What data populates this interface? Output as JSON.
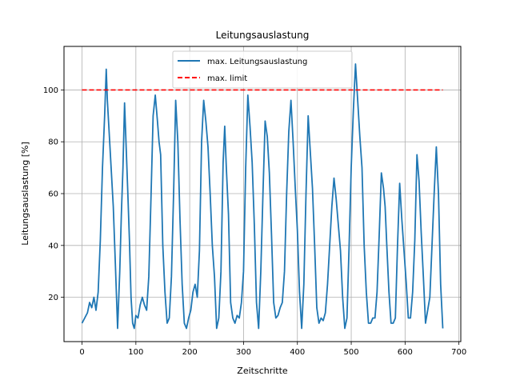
{
  "chart_data": {
    "type": "line",
    "title": "Leitungsauslastung",
    "xlabel": "Zeitschritte",
    "ylabel": "Leitungsauslastung [%]",
    "xlim": [
      -33.5,
      703.5
    ],
    "ylim": [
      2.9,
      116.8
    ],
    "xticks": [
      0,
      100,
      200,
      300,
      400,
      500,
      600,
      700
    ],
    "yticks": [
      20,
      40,
      60,
      80,
      100
    ],
    "grid": true,
    "legend_position": "top-center",
    "series": [
      {
        "name": "max. Leitungsauslastung",
        "color": "#1f77b4",
        "style": "solid",
        "x": [
          0,
          5,
          10,
          14,
          18,
          22,
          26,
          30,
          34,
          38,
          42,
          45,
          47,
          50,
          54,
          58,
          62,
          66,
          70,
          73,
          76,
          79,
          82,
          85,
          88,
          91,
          94,
          97,
          100,
          104,
          108,
          112,
          116,
          120,
          124,
          128,
          132,
          136,
          140,
          143,
          146,
          150,
          154,
          158,
          162,
          166,
          170,
          174,
          178,
          182,
          186,
          190,
          194,
          198,
          202,
          206,
          210,
          214,
          218,
          222,
          226,
          230,
          234,
          238,
          242,
          246,
          250,
          254,
          258,
          262,
          265,
          268,
          272,
          276,
          280,
          284,
          288,
          292,
          296,
          300,
          304,
          308,
          312,
          316,
          320,
          324,
          328,
          332,
          336,
          340,
          344,
          348,
          352,
          356,
          360,
          364,
          368,
          372,
          376,
          380,
          384,
          388,
          392,
          396,
          400,
          404,
          408,
          412,
          416,
          420,
          424,
          428,
          432,
          436,
          440,
          444,
          448,
          452,
          456,
          460,
          464,
          468,
          472,
          476,
          480,
          484,
          488,
          492,
          496,
          500,
          504,
          508,
          512,
          516,
          520,
          524,
          528,
          532,
          536,
          540,
          544,
          548,
          552,
          556,
          560,
          563,
          566,
          570,
          574,
          578,
          582,
          586,
          590,
          594,
          598,
          602,
          606,
          610,
          614,
          618,
          622,
          626,
          630,
          634,
          638,
          642,
          646,
          650,
          654,
          658,
          662,
          666,
          670
        ],
        "y": [
          10,
          12,
          14,
          18,
          16,
          20,
          15,
          22,
          42,
          70,
          90,
          108,
          96,
          85,
          70,
          55,
          32,
          8,
          30,
          52,
          70,
          95,
          78,
          60,
          42,
          20,
          10,
          8,
          13,
          12,
          17,
          20,
          17,
          15,
          28,
          58,
          90,
          98,
          88,
          80,
          75,
          40,
          22,
          10,
          12,
          28,
          60,
          96,
          80,
          50,
          25,
          10,
          8,
          12,
          15,
          22,
          25,
          20,
          38,
          80,
          96,
          88,
          78,
          60,
          40,
          28,
          8,
          12,
          30,
          72,
          86,
          70,
          52,
          18,
          12,
          10,
          13,
          12,
          18,
          30,
          70,
          98,
          86,
          72,
          48,
          18,
          8,
          30,
          60,
          88,
          82,
          68,
          44,
          18,
          12,
          13,
          16,
          18,
          30,
          60,
          84,
          96,
          80,
          62,
          46,
          22,
          8,
          25,
          60,
          90,
          76,
          62,
          40,
          16,
          10,
          12,
          11,
          14,
          25,
          40,
          55,
          66,
          58,
          48,
          38,
          20,
          8,
          12,
          40,
          70,
          92,
          110,
          96,
          82,
          70,
          40,
          22,
          10,
          10,
          12,
          12,
          22,
          44,
          68,
          62,
          55,
          40,
          22,
          10,
          10,
          12,
          40,
          64,
          50,
          38,
          26,
          12,
          12,
          22,
          42,
          75,
          65,
          45,
          28,
          10,
          15,
          20,
          40,
          60,
          78,
          60,
          25,
          8
        ]
      },
      {
        "name": "max. limit",
        "color": "#ff0000",
        "style": "dashed",
        "x": [
          0,
          670
        ],
        "y": [
          100,
          100
        ]
      }
    ]
  }
}
